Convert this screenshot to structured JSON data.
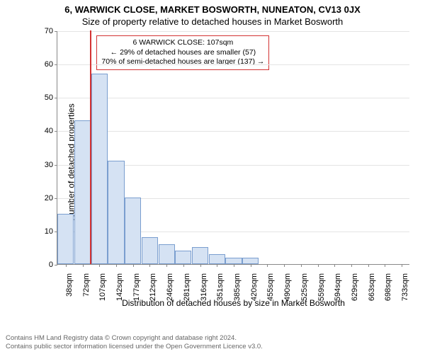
{
  "title_main": "6, WARWICK CLOSE, MARKET BOSWORTH, NUNEATON, CV13 0JX",
  "title_sub": "Size of property relative to detached houses in Market Bosworth",
  "chart": {
    "type": "histogram",
    "ylabel": "Number of detached properties",
    "xlabel": "Distribution of detached houses by size in Market Bosworth",
    "ylim": [
      0,
      70
    ],
    "ytick_step": 10,
    "yticks": [
      0,
      10,
      20,
      30,
      40,
      50,
      60,
      70
    ],
    "categories": [
      "38sqm",
      "72sqm",
      "107sqm",
      "142sqm",
      "177sqm",
      "212sqm",
      "246sqm",
      "281sqm",
      "316sqm",
      "351sqm",
      "385sqm",
      "420sqm",
      "455sqm",
      "490sqm",
      "525sqm",
      "559sqm",
      "594sqm",
      "629sqm",
      "663sqm",
      "698sqm",
      "733sqm"
    ],
    "values": [
      15,
      43,
      57,
      31,
      20,
      8,
      6,
      4,
      5,
      3,
      2,
      2,
      0,
      0,
      0,
      0,
      0,
      0,
      0,
      0,
      0
    ],
    "bar_fill": "#d5e2f3",
    "bar_stroke": "#7a9ecf",
    "grid_color": "#e4e4e4",
    "axis_color": "#888888",
    "background": "#ffffff",
    "marker": {
      "index": 2,
      "color": "#d33333"
    }
  },
  "annotation": {
    "line1": "6 WARWICK CLOSE: 107sqm",
    "line2": "← 29% of detached houses are smaller (57)",
    "line3": "70% of semi-detached houses are larger (137) →",
    "border_color": "#d33333"
  },
  "footer": {
    "line1": "Contains HM Land Registry data © Crown copyright and database right 2024.",
    "line2": "Contains public sector information licensed under the Open Government Licence v3.0."
  }
}
